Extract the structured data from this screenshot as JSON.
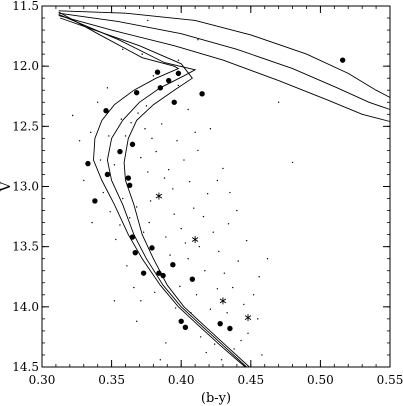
{
  "chart_data": {
    "type": "scatter",
    "title": "",
    "xlabel": "(b-y)",
    "ylabel": "V",
    "xlim": [
      0.3,
      0.55
    ],
    "ylim": [
      11.5,
      14.5
    ],
    "y_inverted": true,
    "grid": false,
    "legend": "none",
    "x_ticks": [
      {
        "value": 0.3,
        "label": "0.30"
      },
      {
        "value": 0.35,
        "label": "0.35"
      },
      {
        "value": 0.4,
        "label": "0.40"
      },
      {
        "value": 0.45,
        "label": "0.45"
      },
      {
        "value": 0.5,
        "label": "0.50"
      },
      {
        "value": 0.55,
        "label": "0.55"
      }
    ],
    "y_ticks": [
      {
        "value": 11.5,
        "label": "11.5"
      },
      {
        "value": 12.0,
        "label": "12.0"
      },
      {
        "value": 12.5,
        "label": "12.5"
      },
      {
        "value": 13.0,
        "label": "13.0"
      },
      {
        "value": 13.5,
        "label": "13.5"
      },
      {
        "value": 14.0,
        "label": "14.0"
      },
      {
        "value": 14.5,
        "label": "14.5"
      }
    ],
    "series": [
      {
        "marker": "filled-circle",
        "points": [
          [
            0.383,
            12.05
          ],
          [
            0.398,
            12.06
          ],
          [
            0.391,
            12.12
          ],
          [
            0.385,
            12.18
          ],
          [
            0.368,
            12.22
          ],
          [
            0.415,
            12.23
          ],
          [
            0.395,
            12.3
          ],
          [
            0.346,
            12.37
          ],
          [
            0.365,
            12.65
          ],
          [
            0.356,
            12.71
          ],
          [
            0.333,
            12.81
          ],
          [
            0.347,
            12.9
          ],
          [
            0.362,
            12.93
          ],
          [
            0.363,
            12.99
          ],
          [
            0.338,
            13.12
          ],
          [
            0.365,
            13.42
          ],
          [
            0.379,
            13.51
          ],
          [
            0.367,
            13.55
          ],
          [
            0.394,
            13.65
          ],
          [
            0.373,
            13.72
          ],
          [
            0.384,
            13.72
          ],
          [
            0.387,
            13.74
          ],
          [
            0.408,
            13.77
          ],
          [
            0.4,
            14.12
          ],
          [
            0.428,
            14.14
          ],
          [
            0.403,
            14.17
          ],
          [
            0.435,
            14.18
          ],
          [
            0.516,
            11.95
          ]
        ]
      },
      {
        "marker": "asterisk",
        "points": [
          [
            0.384,
            13.08
          ],
          [
            0.41,
            13.44
          ],
          [
            0.43,
            13.95
          ],
          [
            0.448,
            14.09
          ]
        ]
      },
      {
        "marker": "small-dot",
        "points": [
          [
            0.322,
            12.41
          ],
          [
            0.327,
            12.62
          ],
          [
            0.335,
            12.55
          ],
          [
            0.34,
            12.3
          ],
          [
            0.348,
            12.58
          ],
          [
            0.352,
            12.82
          ],
          [
            0.357,
            12.44
          ],
          [
            0.36,
            12.58
          ],
          [
            0.364,
            12.47
          ],
          [
            0.369,
            12.39
          ],
          [
            0.371,
            12.76
          ],
          [
            0.374,
            12.52
          ],
          [
            0.376,
            12.88
          ],
          [
            0.379,
            12.6
          ],
          [
            0.382,
            12.71
          ],
          [
            0.386,
            12.48
          ],
          [
            0.388,
            12.93
          ],
          [
            0.391,
            12.86
          ],
          [
            0.394,
            13.02
          ],
          [
            0.397,
            12.62
          ],
          [
            0.402,
            12.78
          ],
          [
            0.406,
            12.96
          ],
          [
            0.409,
            13.18
          ],
          [
            0.412,
            12.7
          ],
          [
            0.416,
            13.25
          ],
          [
            0.419,
            13.06
          ],
          [
            0.423,
            13.38
          ],
          [
            0.427,
            13.54
          ],
          [
            0.431,
            13.72
          ],
          [
            0.434,
            13.31
          ],
          [
            0.437,
            13.84
          ],
          [
            0.441,
            13.62
          ],
          [
            0.445,
            13.98
          ],
          [
            0.448,
            14.22
          ],
          [
            0.452,
            13.9
          ],
          [
            0.356,
            13.32
          ],
          [
            0.361,
            13.66
          ],
          [
            0.366,
            13.84
          ],
          [
            0.371,
            13.95
          ],
          [
            0.377,
            13.3
          ],
          [
            0.381,
            13.88
          ],
          [
            0.389,
            13.42
          ],
          [
            0.392,
            13.57
          ],
          [
            0.396,
            14.01
          ],
          [
            0.399,
            13.83
          ],
          [
            0.403,
            13.47
          ],
          [
            0.407,
            14.05
          ],
          [
            0.411,
            13.9
          ],
          [
            0.414,
            14.25
          ],
          [
            0.418,
            14.38
          ],
          [
            0.421,
            14.02
          ],
          [
            0.424,
            14.31
          ],
          [
            0.429,
            14.44
          ],
          [
            0.433,
            14.05
          ],
          [
            0.438,
            14.35
          ],
          [
            0.344,
            13.05
          ],
          [
            0.349,
            13.21
          ],
          [
            0.353,
            13.44
          ],
          [
            0.358,
            13.1
          ],
          [
            0.363,
            13.26
          ],
          [
            0.368,
            13.17
          ],
          [
            0.373,
            13.38
          ],
          [
            0.378,
            13.12
          ],
          [
            0.395,
            13.23
          ],
          [
            0.4,
            13.35
          ],
          [
            0.405,
            13.6
          ],
          [
            0.413,
            13.5
          ],
          [
            0.417,
            13.7
          ],
          [
            0.426,
            13.85
          ],
          [
            0.443,
            14.28
          ],
          [
            0.33,
            12.95
          ],
          [
            0.336,
            13.3
          ],
          [
            0.342,
            12.78
          ],
          [
            0.347,
            12.18
          ],
          [
            0.375,
            12.33
          ],
          [
            0.38,
            12.08
          ],
          [
            0.398,
            12.16
          ],
          [
            0.405,
            12.36
          ],
          [
            0.421,
            12.52
          ],
          [
            0.43,
            12.85
          ],
          [
            0.47,
            12.3
          ],
          [
            0.48,
            12.8
          ],
          [
            0.462,
            13.6
          ],
          [
            0.458,
            14.4
          ],
          [
            0.385,
            14.44
          ],
          [
            0.376,
            11.62
          ],
          [
            0.372,
            11.9
          ],
          [
            0.358,
            11.86
          ],
          [
            0.455,
            14.1
          ],
          [
            0.44,
            13.2
          ],
          [
            0.435,
            13.05
          ],
          [
            0.389,
            14.3
          ],
          [
            0.368,
            14.12
          ],
          [
            0.352,
            13.95
          ],
          [
            0.41,
            12.55
          ],
          [
            0.426,
            12.95
          ],
          [
            0.447,
            13.45
          ],
          [
            0.456,
            13.75
          ],
          [
            0.412,
            11.78
          ],
          [
            0.398,
            11.95
          ]
        ]
      }
    ],
    "isochrones": [
      [
        [
          0.312,
          11.55
        ],
        [
          0.34,
          11.73
        ],
        [
          0.372,
          11.93
        ],
        [
          0.395,
          12.0
        ],
        [
          0.398,
          12.02
        ],
        [
          0.382,
          12.1
        ],
        [
          0.366,
          12.2
        ],
        [
          0.352,
          12.32
        ],
        [
          0.343,
          12.45
        ],
        [
          0.338,
          12.6
        ],
        [
          0.337,
          12.78
        ],
        [
          0.343,
          12.95
        ],
        [
          0.352,
          13.15
        ],
        [
          0.362,
          13.4
        ],
        [
          0.372,
          13.6
        ],
        [
          0.385,
          13.82
        ],
        [
          0.398,
          14.0
        ],
        [
          0.412,
          14.15
        ],
        [
          0.428,
          14.32
        ],
        [
          0.446,
          14.5
        ]
      ],
      [
        [
          0.312,
          11.57
        ],
        [
          0.355,
          11.78
        ],
        [
          0.388,
          11.97
        ],
        [
          0.41,
          12.03
        ],
        [
          0.402,
          12.08
        ],
        [
          0.385,
          12.18
        ],
        [
          0.37,
          12.3
        ],
        [
          0.358,
          12.45
        ],
        [
          0.35,
          12.6
        ],
        [
          0.347,
          12.78
        ],
        [
          0.35,
          12.95
        ],
        [
          0.358,
          13.15
        ],
        [
          0.366,
          13.4
        ],
        [
          0.375,
          13.6
        ],
        [
          0.387,
          13.82
        ],
        [
          0.4,
          14.0
        ],
        [
          0.414,
          14.15
        ],
        [
          0.43,
          14.32
        ],
        [
          0.447,
          14.5
        ]
      ],
      [
        [
          0.313,
          11.6
        ],
        [
          0.37,
          11.83
        ],
        [
          0.4,
          11.98
        ],
        [
          0.408,
          12.1
        ],
        [
          0.395,
          12.2
        ],
        [
          0.38,
          12.32
        ],
        [
          0.368,
          12.45
        ],
        [
          0.362,
          12.6
        ],
        [
          0.359,
          12.8
        ],
        [
          0.36,
          12.95
        ],
        [
          0.366,
          13.15
        ],
        [
          0.372,
          13.4
        ],
        [
          0.38,
          13.6
        ],
        [
          0.39,
          13.82
        ],
        [
          0.402,
          14.0
        ],
        [
          0.416,
          14.15
        ],
        [
          0.432,
          14.32
        ],
        [
          0.449,
          14.5
        ]
      ],
      [
        [
          0.312,
          11.54
        ],
        [
          0.36,
          11.56
        ],
        [
          0.41,
          11.62
        ],
        [
          0.45,
          11.74
        ],
        [
          0.49,
          11.9
        ],
        [
          0.52,
          12.06
        ],
        [
          0.54,
          12.2
        ],
        [
          0.55,
          12.26
        ]
      ],
      [
        [
          0.312,
          11.56
        ],
        [
          0.355,
          11.63
        ],
        [
          0.4,
          11.73
        ],
        [
          0.44,
          11.86
        ],
        [
          0.48,
          12.02
        ],
        [
          0.512,
          12.18
        ],
        [
          0.535,
          12.3
        ],
        [
          0.55,
          12.36
        ]
      ],
      [
        [
          0.312,
          11.58
        ],
        [
          0.35,
          11.7
        ],
        [
          0.395,
          11.83
        ],
        [
          0.43,
          11.95
        ],
        [
          0.47,
          12.12
        ],
        [
          0.505,
          12.28
        ],
        [
          0.53,
          12.4
        ],
        [
          0.55,
          12.46
        ]
      ]
    ]
  }
}
